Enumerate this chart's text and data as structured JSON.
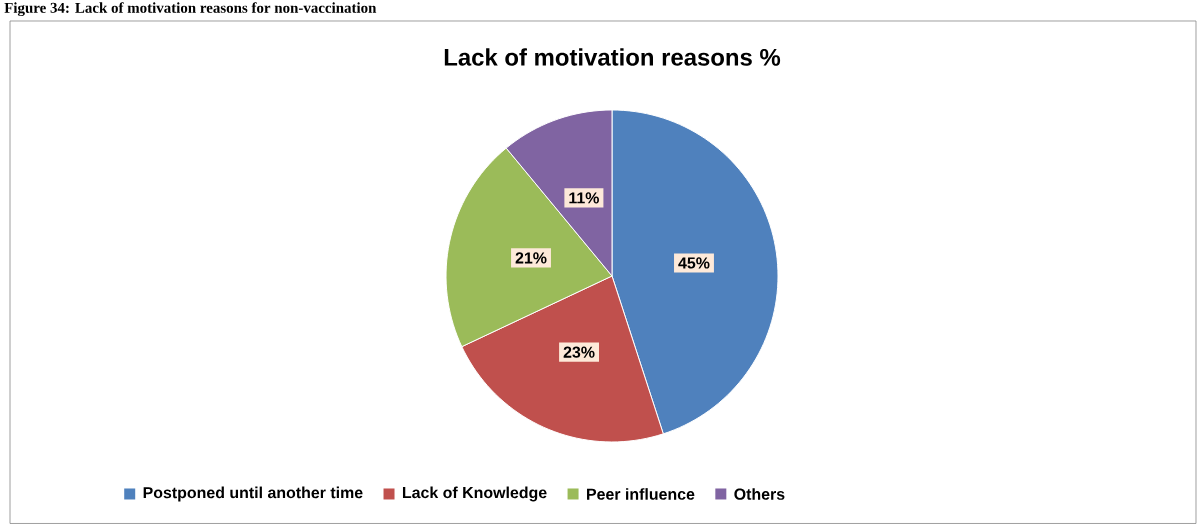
{
  "chart_data": {
    "type": "pie",
    "title": "Lack of motivation reasons %",
    "categories": [
      "Postponed until another time",
      "Lack of Knowledge",
      "Peer influence",
      "Others"
    ],
    "values": [
      45,
      23,
      21,
      11
    ],
    "colors": [
      "#4f81bd",
      "#c0504d",
      "#9bbb59",
      "#8064a2"
    ],
    "value_labels": [
      "45%",
      "23%",
      "21%",
      "11%"
    ],
    "legend": "bottom",
    "annotations": [
      "Figure 34: Lack of motivation reasons for non-vaccination"
    ]
  }
}
